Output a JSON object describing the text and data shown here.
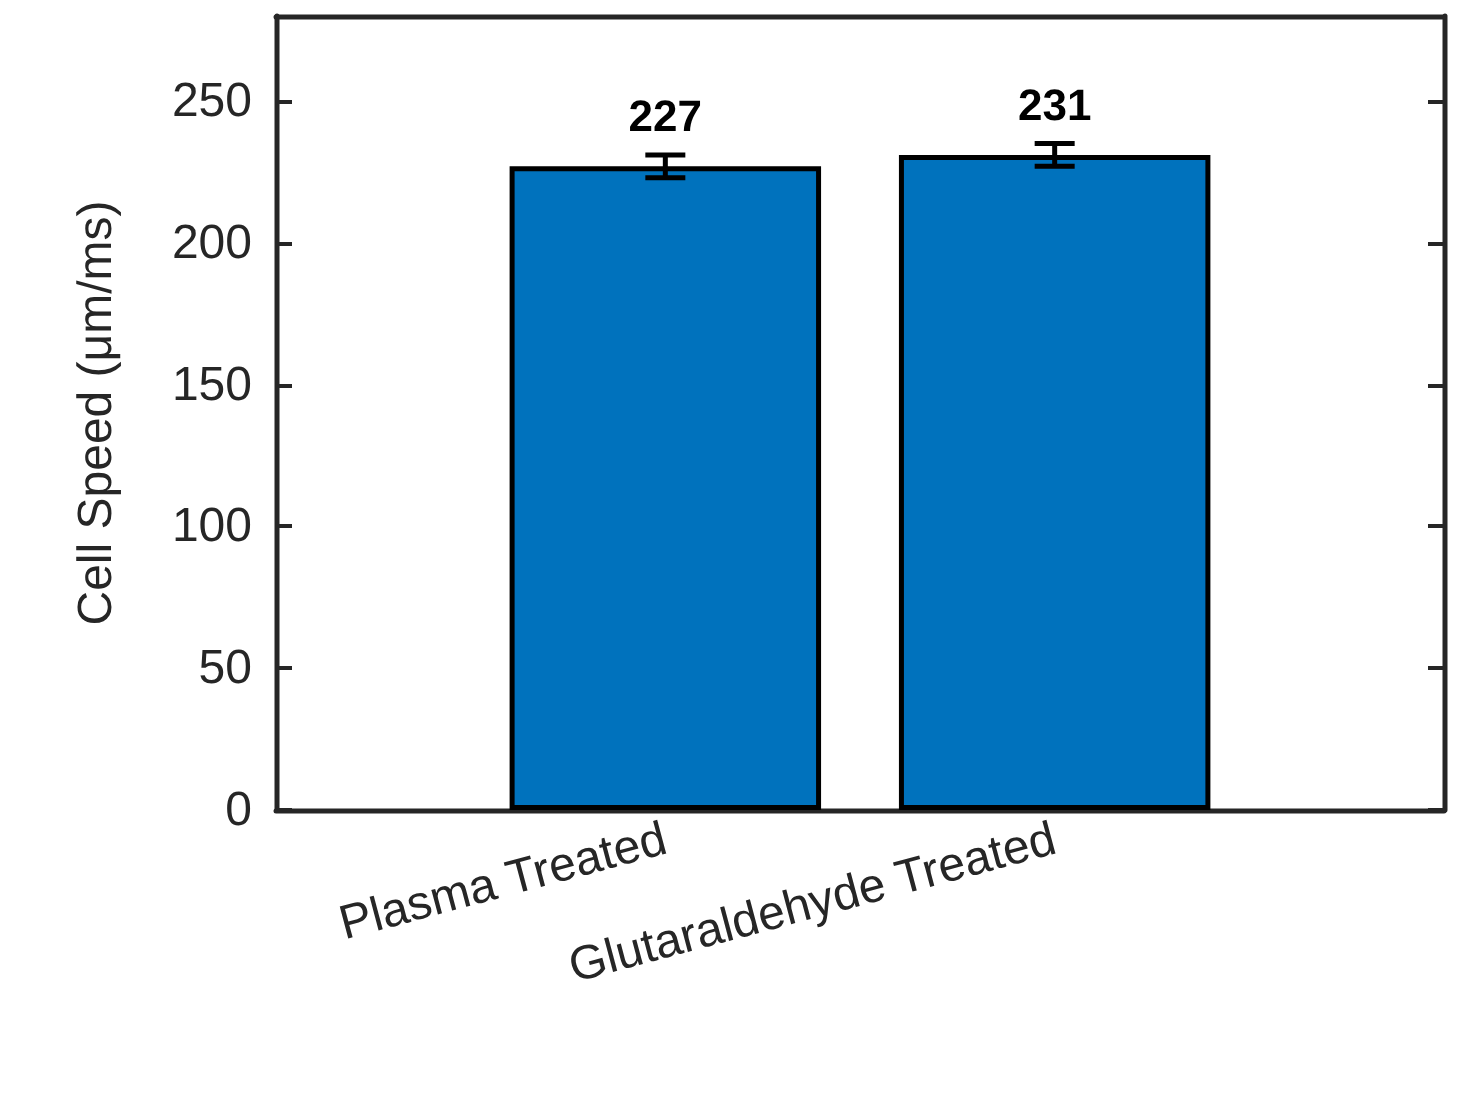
{
  "chart_data": {
    "type": "bar",
    "ylabel": "Cell Speed (μm/ms)",
    "categories": [
      "Plasma Treated",
      "Glutaraldehyde Treated"
    ],
    "values": [
      227,
      231
    ],
    "errors": [
      4,
      4
    ],
    "color": "#0072bd",
    "data_labels": true,
    "ylim": [
      0,
      280
    ],
    "yticks": [
      0,
      50,
      100,
      150,
      200,
      250
    ]
  }
}
